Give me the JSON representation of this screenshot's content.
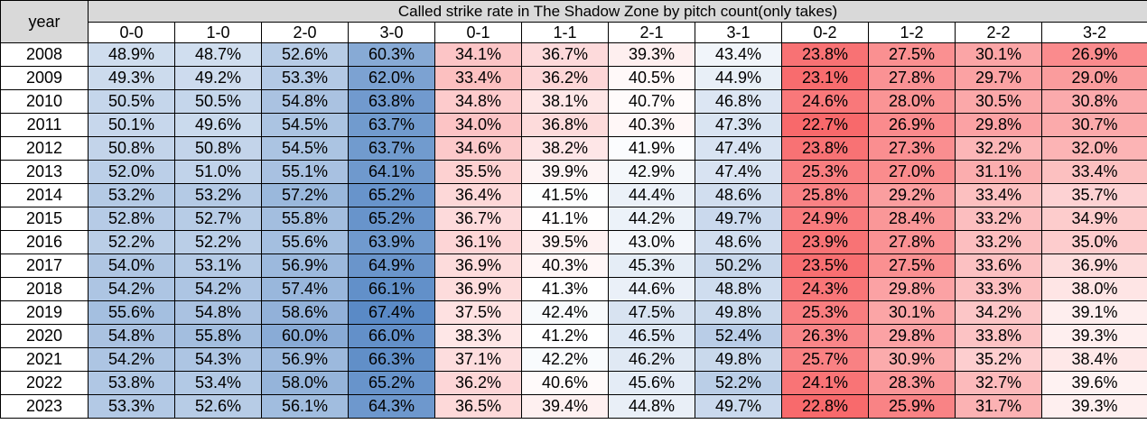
{
  "chart_data": {
    "type": "heatmap",
    "title": "Called strike rate in The Shadow Zone by pitch count(only takes)",
    "row_header": "year",
    "columns": [
      "0-0",
      "1-0",
      "2-0",
      "3-0",
      "0-1",
      "1-1",
      "2-1",
      "3-1",
      "0-2",
      "1-2",
      "2-2",
      "3-2"
    ],
    "color_scale": {
      "low": "#f8696b",
      "mid": "#ffffff",
      "high": "#5a8ac6"
    },
    "rows": [
      {
        "year": "2008",
        "values": [
          "48.9%",
          "48.7%",
          "52.6%",
          "60.3%",
          "34.1%",
          "36.7%",
          "39.3%",
          "43.4%",
          "23.8%",
          "27.5%",
          "30.1%",
          "26.9%"
        ]
      },
      {
        "year": "2009",
        "values": [
          "49.3%",
          "49.2%",
          "53.3%",
          "62.0%",
          "33.4%",
          "36.2%",
          "40.5%",
          "44.9%",
          "23.1%",
          "27.8%",
          "29.7%",
          "29.0%"
        ]
      },
      {
        "year": "2010",
        "values": [
          "50.5%",
          "50.5%",
          "54.8%",
          "63.8%",
          "34.8%",
          "38.1%",
          "40.7%",
          "46.8%",
          "24.6%",
          "28.0%",
          "30.5%",
          "30.8%"
        ]
      },
      {
        "year": "2011",
        "values": [
          "50.1%",
          "49.6%",
          "54.5%",
          "63.7%",
          "34.0%",
          "36.8%",
          "40.3%",
          "47.3%",
          "22.7%",
          "26.9%",
          "29.8%",
          "30.7%"
        ]
      },
      {
        "year": "2012",
        "values": [
          "50.8%",
          "50.8%",
          "54.5%",
          "63.7%",
          "34.6%",
          "38.2%",
          "41.9%",
          "47.4%",
          "23.8%",
          "27.3%",
          "32.2%",
          "32.0%"
        ]
      },
      {
        "year": "2013",
        "values": [
          "52.0%",
          "51.0%",
          "55.1%",
          "64.1%",
          "35.5%",
          "39.9%",
          "42.9%",
          "47.4%",
          "25.3%",
          "27.0%",
          "31.1%",
          "33.4%"
        ]
      },
      {
        "year": "2014",
        "values": [
          "53.2%",
          "53.2%",
          "57.2%",
          "65.2%",
          "36.4%",
          "41.5%",
          "44.4%",
          "48.6%",
          "25.8%",
          "29.2%",
          "33.4%",
          "35.7%"
        ]
      },
      {
        "year": "2015",
        "values": [
          "52.8%",
          "52.7%",
          "55.8%",
          "65.2%",
          "36.7%",
          "41.1%",
          "44.2%",
          "49.7%",
          "24.9%",
          "28.4%",
          "33.2%",
          "34.9%"
        ]
      },
      {
        "year": "2016",
        "values": [
          "52.2%",
          "52.2%",
          "55.6%",
          "63.9%",
          "36.1%",
          "39.5%",
          "43.0%",
          "48.6%",
          "23.9%",
          "27.8%",
          "33.2%",
          "35.0%"
        ]
      },
      {
        "year": "2017",
        "values": [
          "54.0%",
          "53.1%",
          "56.9%",
          "64.9%",
          "36.9%",
          "40.3%",
          "45.3%",
          "50.2%",
          "23.5%",
          "27.5%",
          "33.6%",
          "36.9%"
        ]
      },
      {
        "year": "2018",
        "values": [
          "54.2%",
          "54.2%",
          "57.4%",
          "66.1%",
          "36.9%",
          "41.3%",
          "44.6%",
          "48.8%",
          "24.3%",
          "29.8%",
          "33.3%",
          "38.0%"
        ]
      },
      {
        "year": "2019",
        "values": [
          "55.6%",
          "54.8%",
          "58.6%",
          "67.4%",
          "37.5%",
          "42.4%",
          "47.5%",
          "49.8%",
          "25.3%",
          "30.1%",
          "34.2%",
          "39.1%"
        ]
      },
      {
        "year": "2020",
        "values": [
          "54.8%",
          "55.8%",
          "60.0%",
          "66.0%",
          "38.3%",
          "41.2%",
          "46.5%",
          "52.4%",
          "26.3%",
          "29.8%",
          "33.8%",
          "39.3%"
        ]
      },
      {
        "year": "2021",
        "values": [
          "54.2%",
          "54.3%",
          "56.9%",
          "66.3%",
          "37.1%",
          "42.2%",
          "46.2%",
          "49.8%",
          "25.7%",
          "30.9%",
          "35.2%",
          "38.4%"
        ]
      },
      {
        "year": "2022",
        "values": [
          "53.8%",
          "53.4%",
          "58.0%",
          "65.2%",
          "36.2%",
          "40.6%",
          "45.6%",
          "52.2%",
          "24.1%",
          "28.3%",
          "32.7%",
          "39.6%"
        ]
      },
      {
        "year": "2023",
        "values": [
          "53.3%",
          "52.6%",
          "56.1%",
          "64.3%",
          "36.5%",
          "39.4%",
          "44.8%",
          "49.7%",
          "22.8%",
          "25.9%",
          "31.7%",
          "39.3%"
        ]
      }
    ]
  }
}
